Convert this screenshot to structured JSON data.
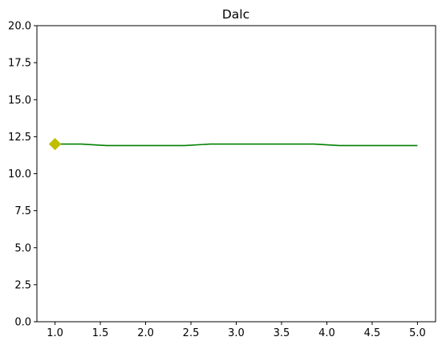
{
  "chart_data": {
    "type": "line",
    "title": "Dalc",
    "xlabel": "",
    "ylabel": "",
    "xlim": [
      0.8,
      5.2
    ],
    "ylim": [
      0.0,
      20.0
    ],
    "x_ticks": [
      "1.0",
      "1.5",
      "2.0",
      "2.5",
      "3.0",
      "3.5",
      "4.0",
      "4.5",
      "5.0"
    ],
    "y_ticks": [
      "0.0",
      "2.5",
      "5.0",
      "7.5",
      "10.0",
      "12.5",
      "15.0",
      "17.5",
      "20.0"
    ],
    "grid": false,
    "series": [
      {
        "color": "#008000",
        "x": [
          1.0,
          1.29,
          1.57,
          1.86,
          2.14,
          2.43,
          2.71,
          3.0,
          3.29,
          3.57,
          3.86,
          4.14,
          4.43,
          4.71,
          5.0
        ],
        "y": [
          12.0,
          12.0,
          11.9,
          11.9,
          11.9,
          11.9,
          12.0,
          12.0,
          12.0,
          12.0,
          12.0,
          11.9,
          11.9,
          11.9,
          11.9
        ]
      }
    ],
    "markers": [
      {
        "shape": "diamond",
        "color": "#bfbf00",
        "x": 1.0,
        "y": 12.0
      }
    ]
  }
}
